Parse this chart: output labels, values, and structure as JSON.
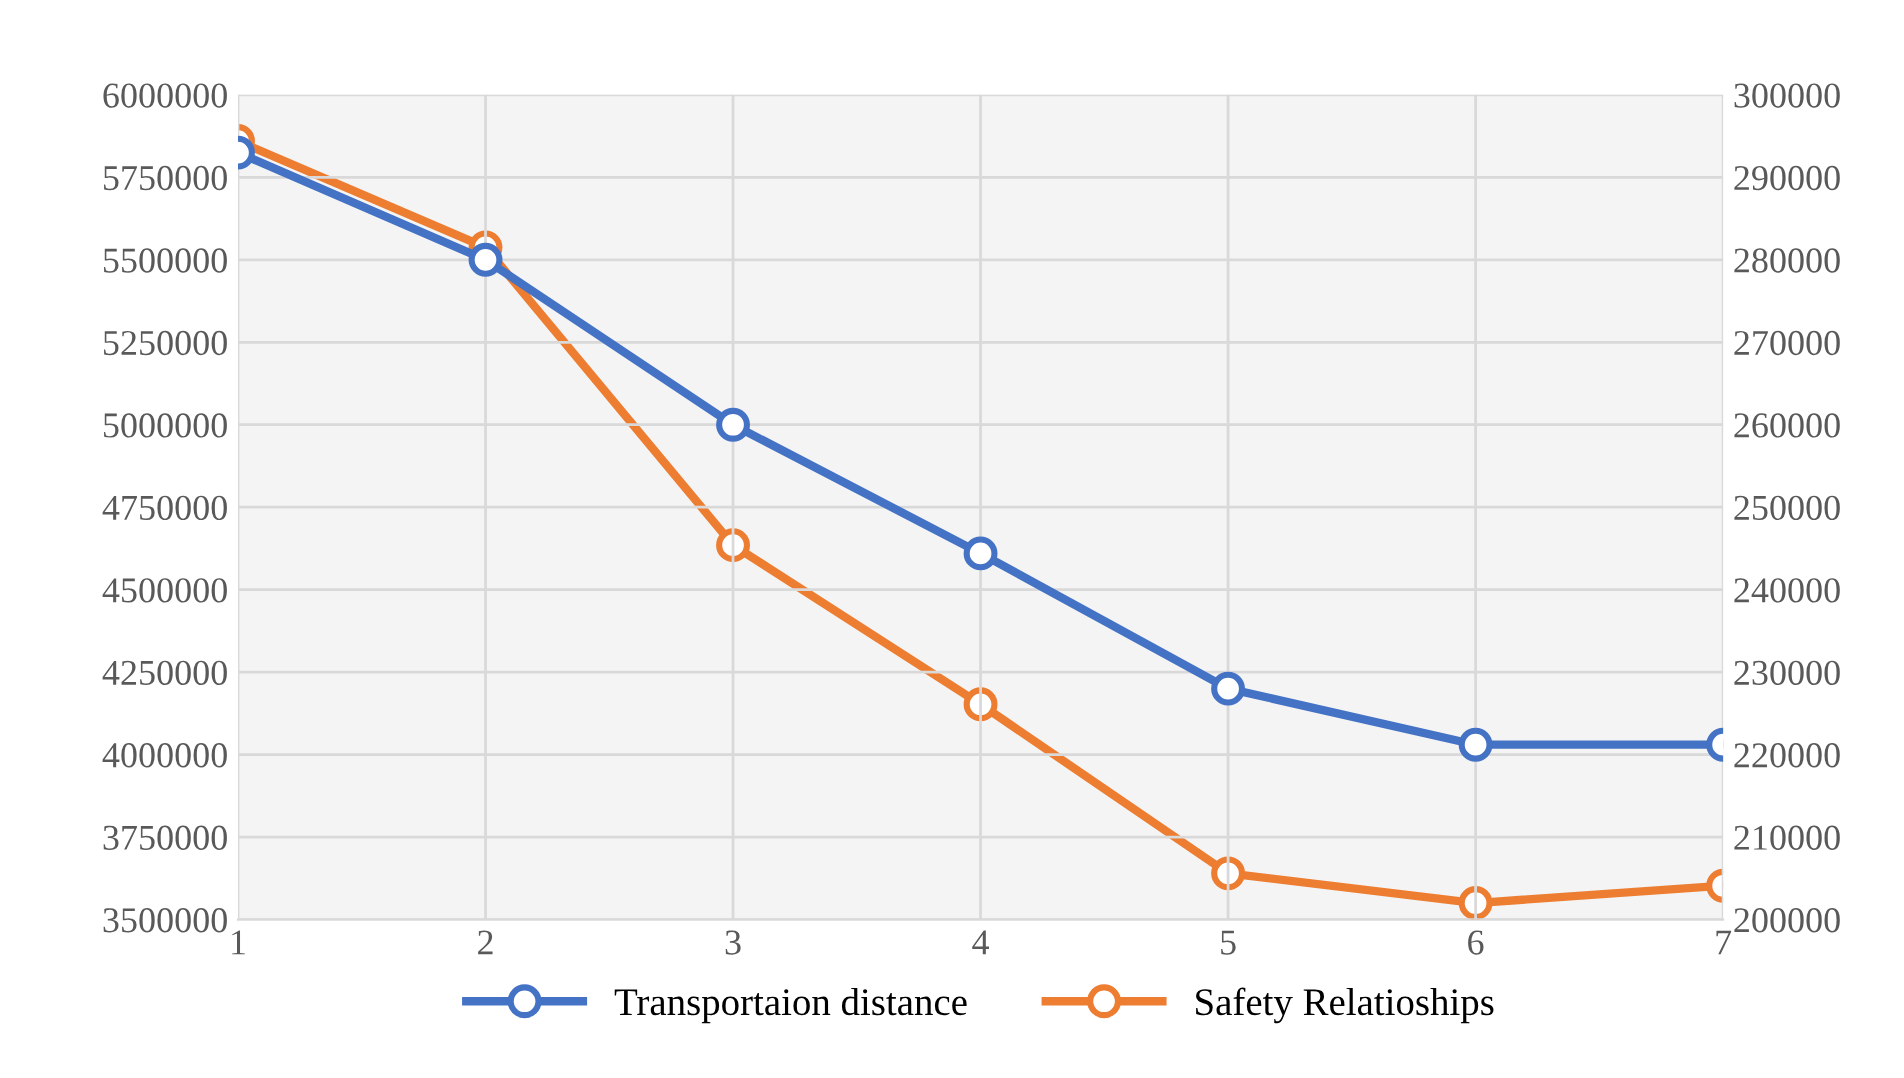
{
  "chart_data": {
    "type": "line",
    "categories": [
      "1",
      "2",
      "3",
      "4",
      "5",
      "6",
      "7"
    ],
    "series": [
      {
        "name": "Transportaion distance",
        "color": "#4472c4",
        "values": [
          5825000,
          5500000,
          5000000,
          4610000,
          4200000,
          4030000,
          4030000
        ]
      },
      {
        "name": "Safety Relatioships",
        "color": "#ed7d31",
        "axis": "y2",
        "values": [
          294400,
          281500,
          245400,
          226100,
          205600,
          202000,
          204100
        ]
      }
    ],
    "ylim": [
      3500000,
      6000000
    ],
    "yticks": [
      3500000,
      3750000,
      4000000,
      4250000,
      4500000,
      4750000,
      5000000,
      5250000,
      5500000,
      5750000,
      6000000
    ],
    "y2lim": [
      200000,
      300000
    ],
    "y2ticks": [
      200000,
      210000,
      220000,
      230000,
      240000,
      250000,
      260000,
      270000,
      280000,
      290000,
      300000
    ],
    "grid": true,
    "legend": "bottom",
    "marker": "circle",
    "line_style": "solid"
  }
}
